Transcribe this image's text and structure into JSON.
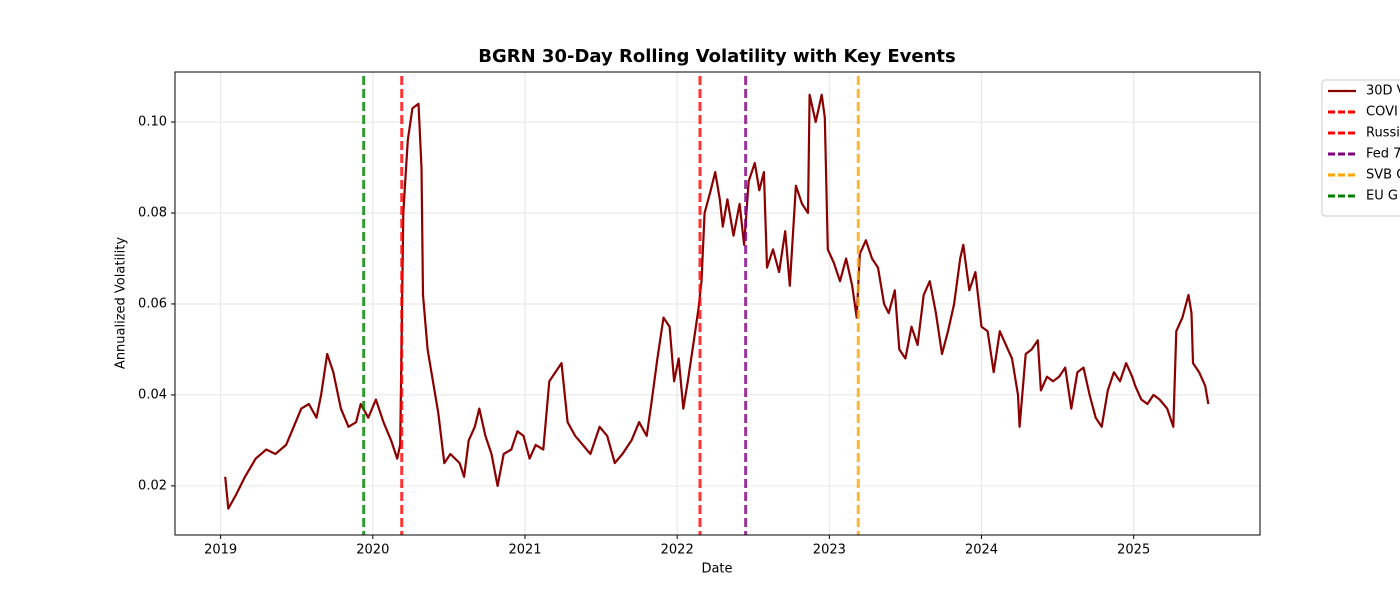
{
  "chart_data": {
    "type": "line",
    "title": "BGRN 30-Day Rolling Volatility with Key Events",
    "xlabel": "Date",
    "ylabel": "Annualized Volatility",
    "xlim": [
      2018.7,
      2025.83
    ],
    "ylim": [
      0.0092,
      0.111
    ],
    "xticks": [
      2019,
      2020,
      2021,
      2022,
      2023,
      2024,
      2025
    ],
    "yticks": [
      0.02,
      0.04,
      0.06,
      0.08,
      {
        "value": 0.1,
        "label": "0.10"
      }
    ],
    "grid": true,
    "legend": "outside-right",
    "series": [
      {
        "name": "30D V",
        "color": "#8b0000",
        "x": [
          2019.03,
          2019.05,
          2019.1,
          2019.16,
          2019.23,
          2019.3,
          2019.36,
          2019.43,
          2019.48,
          2019.53,
          2019.58,
          2019.63,
          2019.66,
          2019.7,
          2019.74,
          2019.79,
          2019.84,
          2019.89,
          2019.92,
          2019.97,
          2020.02,
          2020.07,
          2020.12,
          2020.16,
          2020.18,
          2020.2,
          2020.23,
          2020.26,
          2020.3,
          2020.32,
          2020.33,
          2020.36,
          2020.4,
          2020.43,
          2020.47,
          2020.51,
          2020.57,
          2020.6,
          2020.63,
          2020.67,
          2020.7,
          2020.74,
          2020.78,
          2020.82,
          2020.86,
          2020.91,
          2020.95,
          2020.99,
          2021.03,
          2021.07,
          2021.12,
          2021.16,
          2021.2,
          2021.24,
          2021.28,
          2021.33,
          2021.38,
          2021.43,
          2021.49,
          2021.54,
          2021.59,
          2021.64,
          2021.7,
          2021.75,
          2021.8,
          2021.83,
          2021.87,
          2021.91,
          2021.95,
          2021.98,
          2022.01,
          2022.04,
          2022.07,
          2022.11,
          2022.14,
          2022.16,
          2022.18,
          2022.22,
          2022.25,
          2022.28,
          2022.3,
          2022.33,
          2022.37,
          2022.41,
          2022.44,
          2022.47,
          2022.51,
          2022.54,
          2022.57,
          2022.59,
          2022.63,
          2022.67,
          2022.71,
          2022.74,
          2022.78,
          2022.82,
          2022.86,
          2022.87,
          2022.91,
          2022.95,
          2022.97,
          2022.99,
          2023.03,
          2023.07,
          2023.11,
          2023.15,
          2023.18,
          2023.2,
          2023.24,
          2023.28,
          2023.32,
          2023.36,
          2023.39,
          2023.43,
          2023.46,
          2023.5,
          2023.54,
          2023.58,
          2023.62,
          2023.66,
          2023.7,
          2023.74,
          2023.78,
          2023.82,
          2023.86,
          2023.88,
          2023.92,
          2023.96,
          2024.0,
          2024.04,
          2024.08,
          2024.12,
          2024.16,
          2024.2,
          2024.24,
          2024.25,
          2024.29,
          2024.33,
          2024.37,
          2024.39,
          2024.43,
          2024.47,
          2024.51,
          2024.55,
          2024.59,
          2024.63,
          2024.67,
          2024.71,
          2024.75,
          2024.79,
          2024.83,
          2024.87,
          2024.91,
          2024.95,
          2024.99,
          2025.01,
          2025.05,
          2025.09,
          2025.13,
          2025.17,
          2025.22,
          2025.26,
          2025.28,
          2025.32,
          2025.36,
          2025.38,
          2025.39,
          2025.43,
          2025.47,
          2025.49
        ],
        "values": [
          0.022,
          0.015,
          0.018,
          0.022,
          0.026,
          0.028,
          0.027,
          0.029,
          0.033,
          0.037,
          0.038,
          0.035,
          0.04,
          0.049,
          0.045,
          0.037,
          0.033,
          0.034,
          0.038,
          0.035,
          0.039,
          0.034,
          0.03,
          0.026,
          0.029,
          0.08,
          0.096,
          0.103,
          0.104,
          0.09,
          0.062,
          0.05,
          0.042,
          0.036,
          0.025,
          0.027,
          0.025,
          0.022,
          0.03,
          0.033,
          0.037,
          0.031,
          0.027,
          0.02,
          0.027,
          0.028,
          0.032,
          0.031,
          0.026,
          0.029,
          0.028,
          0.043,
          0.045,
          0.047,
          0.034,
          0.031,
          0.029,
          0.027,
          0.033,
          0.031,
          0.025,
          0.027,
          0.03,
          0.034,
          0.031,
          0.038,
          0.048,
          0.057,
          0.055,
          0.043,
          0.048,
          0.037,
          0.043,
          0.052,
          0.059,
          0.065,
          0.08,
          0.085,
          0.089,
          0.083,
          0.077,
          0.083,
          0.075,
          0.082,
          0.073,
          0.087,
          0.091,
          0.085,
          0.089,
          0.068,
          0.072,
          0.067,
          0.076,
          0.064,
          0.086,
          0.082,
          0.08,
          0.106,
          0.1,
          0.106,
          0.101,
          0.072,
          0.069,
          0.065,
          0.07,
          0.064,
          0.057,
          0.071,
          0.074,
          0.07,
          0.068,
          0.06,
          0.058,
          0.063,
          0.05,
          0.048,
          0.055,
          0.051,
          0.062,
          0.065,
          0.058,
          0.049,
          0.054,
          0.06,
          0.07,
          0.073,
          0.063,
          0.067,
          0.055,
          0.054,
          0.045,
          0.054,
          0.051,
          0.048,
          0.04,
          0.033,
          0.049,
          0.05,
          0.052,
          0.041,
          0.044,
          0.043,
          0.044,
          0.046,
          0.037,
          0.045,
          0.046,
          0.04,
          0.035,
          0.033,
          0.041,
          0.045,
          0.043,
          0.047,
          0.044,
          0.042,
          0.039,
          0.038,
          0.04,
          0.039,
          0.037,
          0.033,
          0.054,
          0.057,
          0.062,
          0.058,
          0.047,
          0.045,
          0.042,
          0.038
        ]
      }
    ],
    "events": [
      {
        "name": "COVI",
        "color": "#ff0000",
        "x": 2020.19
      },
      {
        "name": "Russi",
        "color": "#ff0000",
        "x": 2022.15
      },
      {
        "name": "Fed 7",
        "color": "#800080",
        "x": 2022.45
      },
      {
        "name": "SVB C",
        "color": "#ffa500",
        "x": 2023.19
      },
      {
        "name": "EU G",
        "color": "#008000",
        "x": 2019.94
      }
    ]
  }
}
